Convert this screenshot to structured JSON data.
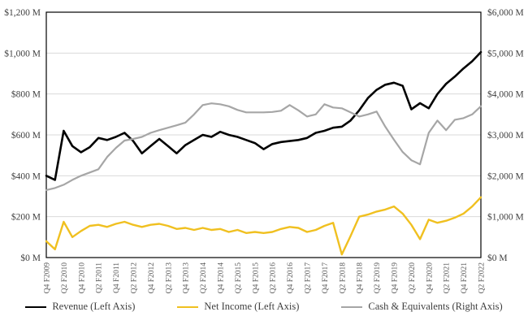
{
  "chart_data": {
    "type": "line",
    "title": "",
    "x_tick_labels": [
      "Q4 F2009",
      "Q2 F2010",
      "Q4 F2010",
      "Q2 F2011",
      "Q4 F2011",
      "Q2 F2012",
      "Q4 F2012",
      "Q2 F2013",
      "Q4 F2013",
      "Q2 F2014",
      "Q4 F2014",
      "Q2 F2015",
      "Q4 F2015",
      "Q2 F2016",
      "Q4 F2016",
      "Q2 F2017",
      "Q4 F2017",
      "Q2 F2018",
      "Q4 F2018",
      "Q2 F2019",
      "Q4 F2019",
      "Q2 F2020",
      "Q4 F2020",
      "Q2 F2021",
      "Q4 F2021",
      "Q2 F2022"
    ],
    "x_tick_every": 2,
    "n_points": 51,
    "left_axis": {
      "min": 0,
      "max": 1200,
      "step": 200,
      "tick_labels": [
        "$0 M",
        "$200 M",
        "$400 M",
        "$600 M",
        "$800 M",
        "$1,000 M",
        "$1,200 M"
      ]
    },
    "right_axis": {
      "min": 0,
      "max": 6000,
      "step": 1000,
      "tick_labels": [
        "$0 M",
        "$1,000 M",
        "$2,000 M",
        "$3,000 M",
        "$4,000 M",
        "$5,000 M",
        "$6,000 M"
      ]
    },
    "series": [
      {
        "name": "Revenue (Left Axis)",
        "axis": "left",
        "color": "#000000",
        "width": 2.6,
        "values": [
          400,
          380,
          620,
          545,
          515,
          540,
          585,
          575,
          590,
          610,
          570,
          510,
          545,
          580,
          545,
          510,
          550,
          575,
          600,
          590,
          615,
          600,
          590,
          575,
          560,
          530,
          555,
          565,
          570,
          575,
          585,
          610,
          620,
          635,
          640,
          670,
          720,
          780,
          820,
          845,
          855,
          840,
          725,
          755,
          730,
          800,
          850,
          885,
          925,
          960,
          1005
        ]
      },
      {
        "name": "Net Income (Left Axis)",
        "axis": "left",
        "color": "#F0C020",
        "width": 2.4,
        "values": [
          80,
          40,
          175,
          100,
          130,
          155,
          160,
          150,
          165,
          175,
          160,
          150,
          160,
          165,
          155,
          140,
          145,
          135,
          145,
          135,
          140,
          125,
          135,
          120,
          125,
          120,
          125,
          140,
          150,
          145,
          125,
          135,
          155,
          170,
          15,
          105,
          200,
          210,
          225,
          235,
          250,
          215,
          160,
          90,
          185,
          170,
          180,
          195,
          215,
          250,
          295
        ]
      },
      {
        "name": "Cash & Equivalents (Right Axis)",
        "axis": "right",
        "color": "#A6A6A6",
        "width": 2.2,
        "values": [
          1650,
          1700,
          1780,
          1900,
          2000,
          2080,
          2160,
          2460,
          2680,
          2860,
          2900,
          2950,
          3050,
          3115,
          3175,
          3235,
          3300,
          3500,
          3730,
          3770,
          3750,
          3700,
          3610,
          3550,
          3550,
          3550,
          3560,
          3590,
          3730,
          3600,
          3450,
          3500,
          3750,
          3670,
          3650,
          3550,
          3450,
          3500,
          3570,
          3200,
          2880,
          2580,
          2380,
          2280,
          3050,
          3350,
          3115,
          3370,
          3410,
          3500,
          3700
        ]
      }
    ],
    "colors": {
      "background": "#FFFFFF",
      "grid": "#D9D9D9",
      "axis": "#000000",
      "tick_text": "#404040",
      "x_tick_text": "#595959"
    },
    "legend_position": "bottom",
    "grid": "horizontal"
  }
}
